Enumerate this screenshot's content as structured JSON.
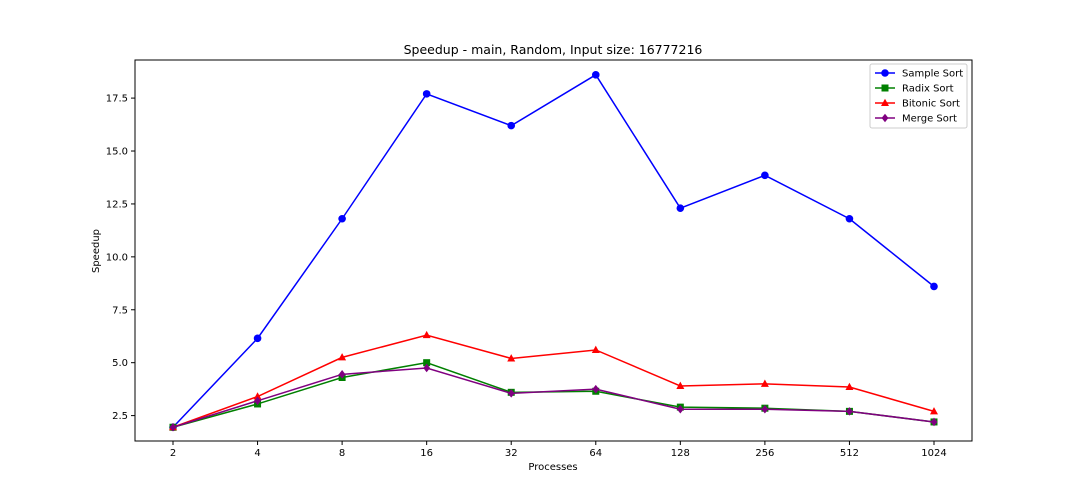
{
  "chart_data": {
    "type": "line",
    "title": "Speedup - main, Random, Input size: 16777216",
    "xlabel": "Processes",
    "ylabel": "Speedup",
    "categories": [
      "2",
      "4",
      "8",
      "16",
      "32",
      "64",
      "128",
      "256",
      "512",
      "1024"
    ],
    "yticks": [
      "2.5",
      "5.0",
      "7.5",
      "10.0",
      "12.5",
      "15.0",
      "17.5"
    ],
    "ylim": [
      1.3,
      19.3
    ],
    "grid": false,
    "legend_position": "top-right",
    "series": [
      {
        "name": "Sample Sort",
        "color": "#0000ff",
        "marker": "circle",
        "values": [
          1.95,
          6.15,
          11.8,
          17.7,
          16.2,
          18.6,
          12.3,
          13.85,
          11.8,
          8.6
        ]
      },
      {
        "name": "Radix Sort",
        "color": "#008000",
        "marker": "square",
        "values": [
          1.95,
          3.05,
          4.3,
          5.0,
          3.6,
          3.65,
          2.9,
          2.85,
          2.7,
          2.2
        ]
      },
      {
        "name": "Bitonic Sort",
        "color": "#ff0000",
        "marker": "triangle",
        "values": [
          1.95,
          3.4,
          5.25,
          6.3,
          5.2,
          5.6,
          3.9,
          4.0,
          3.85,
          2.7
        ]
      },
      {
        "name": "Merge Sort",
        "color": "#800080",
        "marker": "diamond",
        "values": [
          1.95,
          3.2,
          4.45,
          4.75,
          3.55,
          3.75,
          2.8,
          2.8,
          2.7,
          2.2
        ]
      }
    ]
  }
}
